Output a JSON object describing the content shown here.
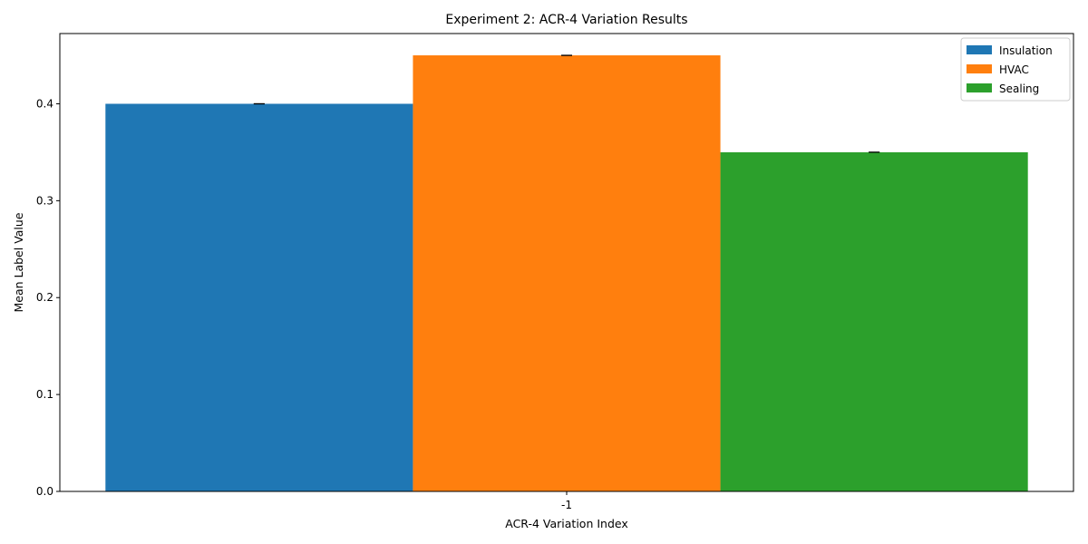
{
  "chart_data": {
    "type": "bar",
    "title": "Experiment 2: ACR-4 Variation Results",
    "xlabel": "ACR-4 Variation Index",
    "ylabel": "Mean Label Value",
    "categories": [
      "-1"
    ],
    "series": [
      {
        "name": "Insulation",
        "values": [
          0.4
        ],
        "error": [
          0.0
        ],
        "color": "#1f77b4"
      },
      {
        "name": "HVAC",
        "values": [
          0.45
        ],
        "error": [
          0.0
        ],
        "color": "#ff7f0e"
      },
      {
        "name": "Sealing",
        "values": [
          0.35
        ],
        "error": [
          0.0
        ],
        "color": "#2ca02c"
      }
    ],
    "ylim": [
      0,
      0.4725
    ],
    "yticks": [
      "0.0",
      "0.1",
      "0.2",
      "0.3",
      "0.4"
    ],
    "grid": false,
    "legend": "top-right"
  }
}
